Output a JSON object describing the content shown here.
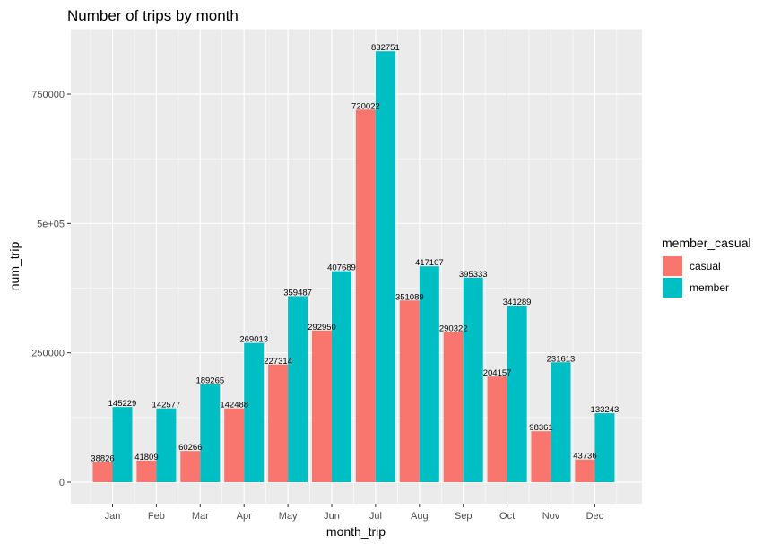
{
  "chart_data": {
    "type": "bar",
    "title": "Number of trips by month",
    "xlabel": "month_trip",
    "ylabel": "num_trip",
    "categories": [
      "Jan",
      "Feb",
      "Mar",
      "Apr",
      "May",
      "Jun",
      "Jul",
      "Aug",
      "Sep",
      "Oct",
      "Nov",
      "Dec"
    ],
    "series": [
      {
        "name": "casual",
        "color": "#f8766d",
        "values": [
          38826,
          41809,
          60266,
          142488,
          227314,
          292950,
          720022,
          351089,
          290322,
          204157,
          98361,
          43736
        ]
      },
      {
        "name": "member",
        "color": "#00bfc4",
        "values": [
          145229,
          142577,
          189265,
          269013,
          359487,
          407689,
          832751,
          417107,
          395333,
          341289,
          231613,
          133243
        ]
      }
    ],
    "yticks": [
      0,
      250000,
      500000,
      750000
    ],
    "ytick_labels": [
      "0",
      "250000",
      "5e+05",
      "750000"
    ],
    "ylim": [
      0,
      875000
    ],
    "grid": true,
    "panel_background": "#ebebeb",
    "legend": {
      "title": "member_casual",
      "position": "right"
    }
  }
}
